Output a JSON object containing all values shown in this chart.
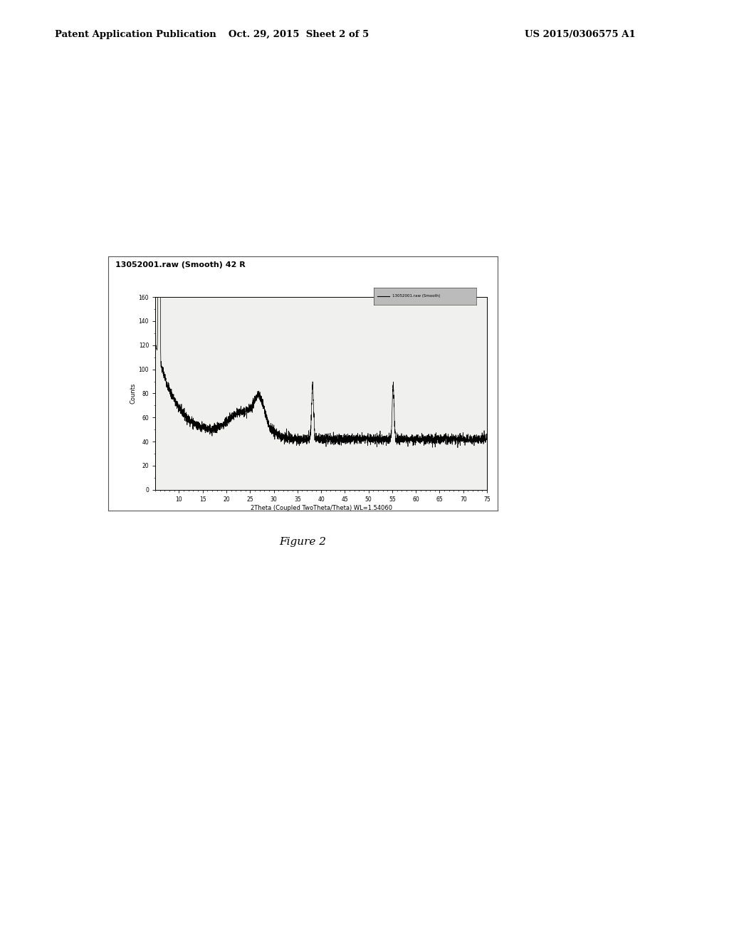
{
  "title": "13052001.raw (Smooth) 42 R",
  "xlabel": "2Theta (Coupled TwoTheta/Theta) WL=1.54060",
  "ylabel": "Counts",
  "header_left": "Patent Application Publication",
  "header_center": "Oct. 29, 2015  Sheet 2 of 5",
  "header_right": "US 2015/0306575 A1",
  "figure_label": "Figure 2",
  "ylim": [
    0,
    160
  ],
  "xlim": [
    5,
    75
  ],
  "yticks": [
    0,
    20,
    40,
    60,
    80,
    100,
    120,
    140,
    160
  ],
  "xticks": [
    10,
    15,
    20,
    25,
    30,
    35,
    40,
    45,
    50,
    55,
    60,
    65,
    70,
    75
  ],
  "background_color": "#ffffff",
  "plot_bg_color": "#f0f0ee",
  "line_color": "#000000",
  "legend_text": "13052001.raw (Smooth)"
}
